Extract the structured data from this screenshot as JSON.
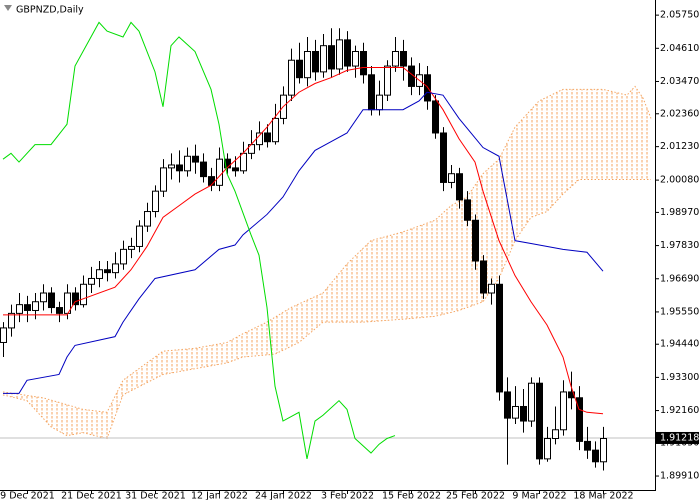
{
  "chart_data": {
    "type": "candlestick",
    "title": "GBPNZD,Daily",
    "categories": [
      null,
      null,
      null,
      "9 Dec 2021",
      null,
      null,
      null,
      null,
      null,
      null,
      null,
      "21 Dec 2021",
      null,
      null,
      null,
      null,
      null,
      null,
      null,
      "31 Dec 2021",
      null,
      null,
      null,
      null,
      null,
      null,
      null,
      "12 Jan 2022",
      null,
      null,
      null,
      null,
      null,
      null,
      null,
      "24 Jan 2022",
      null,
      null,
      null,
      null,
      null,
      null,
      null,
      "3 Feb 2022",
      null,
      null,
      null,
      null,
      null,
      null,
      null,
      "15 Feb 2022",
      null,
      null,
      null,
      null,
      null,
      null,
      null,
      "25 Feb 2022",
      null,
      null,
      null,
      null,
      null,
      null,
      null,
      "9 Mar 2022",
      null,
      null,
      null,
      null,
      null,
      null,
      null,
      "18 Mar 2022"
    ],
    "open": [
      1.945,
      1.95,
      1.955,
      1.958,
      1.956,
      1.959,
      1.962,
      1.957,
      1.955,
      1.962,
      1.958,
      1.965,
      1.967,
      1.97,
      1.969,
      1.972,
      1.977,
      1.978,
      1.985,
      1.99,
      1.997,
      2.005,
      2.006,
      2.004,
      2.009,
      2.007,
      2.002,
      1.999,
      2.008,
      2.005,
      2.004,
      2.01,
      2.013,
      2.017,
      2.014,
      2.022,
      2.03,
      2.042,
      2.036,
      2.045,
      2.038,
      2.047,
      2.039,
      2.049,
      2.04,
      2.045,
      2.037,
      2.025,
      2.03,
      2.04,
      2.045,
      2.04,
      2.033,
      2.037,
      2.028,
      2.017,
      2.0,
      2.003,
      1.994,
      1.987,
      1.973,
      1.962,
      1.965,
      1.928,
      1.919,
      1.923,
      1.918,
      1.931,
      1.905,
      1.912,
      1.915,
      1.928,
      1.926,
      1.911,
      1.908,
      1.904
    ],
    "high": [
      1.952,
      1.958,
      1.962,
      1.961,
      1.962,
      1.965,
      1.964,
      1.959,
      1.965,
      1.964,
      1.968,
      1.971,
      1.973,
      1.973,
      1.976,
      1.98,
      1.981,
      1.987,
      1.993,
      1.999,
      2.008,
      2.01,
      2.011,
      2.012,
      2.013,
      2.01,
      2.005,
      2.012,
      2.01,
      2.009,
      2.014,
      2.018,
      2.021,
      2.02,
      2.027,
      2.033,
      2.046,
      2.048,
      2.05,
      2.049,
      2.051,
      2.053,
      2.053,
      2.052,
      2.047,
      2.048,
      2.04,
      2.035,
      2.042,
      2.05,
      2.049,
      2.043,
      2.041,
      2.04,
      2.03,
      2.019,
      2.006,
      2.005,
      1.997,
      1.989,
      1.975,
      1.967,
      1.968,
      1.933,
      1.93,
      1.929,
      1.933,
      1.933,
      1.916,
      1.923,
      1.932,
      1.935,
      1.93,
      1.916,
      1.911,
      1.916
    ],
    "low": [
      1.94,
      1.947,
      1.952,
      1.952,
      1.953,
      1.956,
      1.955,
      1.952,
      1.953,
      1.956,
      1.957,
      1.962,
      1.964,
      1.966,
      1.967,
      1.97,
      1.974,
      1.976,
      1.983,
      1.988,
      1.995,
      2.001,
      2.0,
      2.002,
      2.003,
      2.0,
      1.997,
      1.997,
      2.003,
      2.002,
      2.003,
      2.008,
      2.011,
      2.012,
      2.013,
      2.02,
      2.028,
      2.034,
      2.033,
      2.035,
      2.036,
      2.036,
      2.037,
      2.038,
      2.036,
      2.034,
      2.023,
      2.023,
      2.028,
      2.038,
      2.035,
      2.03,
      2.03,
      2.025,
      2.015,
      1.997,
      1.998,
      1.991,
      1.985,
      1.97,
      1.96,
      1.958,
      1.925,
      1.903,
      1.917,
      1.914,
      1.916,
      1.903,
      1.904,
      1.91,
      1.913,
      1.922,
      1.908,
      1.905,
      1.902,
      1.901
    ],
    "close": [
      1.95,
      1.955,
      1.958,
      1.956,
      1.959,
      1.962,
      1.957,
      1.955,
      1.962,
      1.958,
      1.965,
      1.967,
      1.97,
      1.969,
      1.972,
      1.977,
      1.978,
      1.985,
      1.99,
      1.997,
      2.005,
      2.006,
      2.004,
      2.009,
      2.007,
      2.002,
      1.999,
      2.008,
      2.005,
      2.004,
      2.01,
      2.013,
      2.017,
      2.014,
      2.022,
      2.03,
      2.042,
      2.036,
      2.045,
      2.038,
      2.047,
      2.039,
      2.049,
      2.04,
      2.045,
      2.037,
      2.025,
      2.03,
      2.04,
      2.045,
      2.04,
      2.033,
      2.037,
      2.028,
      2.017,
      2.0,
      2.003,
      1.994,
      1.987,
      1.973,
      1.962,
      1.965,
      1.928,
      1.919,
      1.923,
      1.918,
      1.931,
      1.905,
      1.912,
      1.915,
      1.928,
      1.926,
      1.911,
      1.908,
      1.904,
      1.912
    ],
    "lines": [
      {
        "color": "#ff0000",
        "x": [
          0,
          8,
          9,
          14,
          16,
          18,
          20,
          22,
          24,
          26,
          28,
          30,
          33,
          35,
          37,
          39,
          41,
          43,
          45,
          50,
          53,
          55,
          57,
          59,
          60,
          62,
          64,
          66,
          68,
          70,
          71,
          72,
          73,
          75
        ],
        "values": [
          1.9545,
          1.9545,
          1.959,
          1.964,
          1.97,
          1.978,
          1.988,
          1.992,
          1.996,
          1.999,
          2.005,
          2.01,
          2.019,
          2.026,
          2.031,
          2.034,
          2.036,
          2.0385,
          2.0395,
          2.0395,
          2.033,
          2.025,
          2.015,
          2.007,
          1.997,
          1.98,
          1.968,
          1.959,
          1.951,
          1.94,
          1.93,
          1.922,
          1.921,
          1.9205
        ]
      },
      {
        "color": "#0000c0",
        "x": [
          0,
          2,
          3,
          7,
          8,
          9,
          14,
          15,
          17,
          19,
          24,
          27,
          29,
          30,
          33,
          35,
          37,
          39,
          41,
          43,
          45,
          50,
          52,
          53,
          55,
          57,
          60,
          62,
          64,
          66,
          70,
          73,
          75
        ],
        "values": [
          1.9275,
          1.9275,
          1.932,
          1.934,
          1.94,
          1.944,
          1.947,
          1.952,
          1.96,
          1.967,
          1.97,
          1.977,
          1.9785,
          1.982,
          1.989,
          1.995,
          2.004,
          2.011,
          2.014,
          2.017,
          2.025,
          2.025,
          2.028,
          2.031,
          2.03,
          2.022,
          2.012,
          2.009,
          1.98,
          1.979,
          1.977,
          1.976,
          1.9695
        ]
      },
      {
        "color": "#00dd00",
        "x": [
          0,
          1,
          2,
          4,
          6,
          8,
          9,
          12,
          13,
          15,
          16,
          17,
          19,
          20,
          21,
          22,
          24,
          26,
          27,
          28,
          29,
          31,
          32,
          33,
          34,
          35,
          37,
          38,
          39,
          40,
          42,
          43,
          44,
          46,
          47,
          48,
          49
        ],
        "values": [
          2.008,
          2.01,
          2.007,
          2.013,
          2.013,
          2.02,
          2.04,
          2.055,
          2.052,
          2.05,
          2.055,
          2.052,
          2.038,
          2.026,
          2.047,
          2.05,
          2.045,
          2.032,
          2.02,
          2.003,
          1.997,
          1.982,
          1.975,
          1.957,
          1.93,
          1.918,
          1.921,
          1.905,
          1.918,
          1.92,
          1.925,
          1.922,
          1.912,
          1.907,
          1.91,
          1.912,
          1.913
        ]
      }
    ],
    "cloud": {
      "color": "#f4a460",
      "span_a": {
        "x": [
          0,
          5,
          10,
          13,
          15,
          18,
          20,
          24,
          28,
          30,
          33,
          36,
          40,
          43,
          46,
          50,
          54,
          56,
          58,
          60,
          62,
          64,
          67,
          70,
          75,
          78,
          79,
          80,
          81
        ],
        "values": [
          1.928,
          1.926,
          1.922,
          1.921,
          1.932,
          1.938,
          1.942,
          1.943,
          1.945,
          1.948,
          1.952,
          1.957,
          1.962,
          1.972,
          1.98,
          1.983,
          1.987,
          1.992,
          1.995,
          2.003,
          2.008,
          2.019,
          2.028,
          2.032,
          2.032,
          2.03,
          2.033,
          2.029,
          2.022
        ]
      },
      "span_b": {
        "x": [
          0,
          3,
          6,
          8,
          10,
          13,
          15,
          20,
          24,
          28,
          30,
          34,
          37,
          40,
          45,
          50,
          54,
          57,
          60,
          62,
          64,
          66,
          68,
          70,
          72,
          75,
          78,
          81
        ],
        "values": [
          1.927,
          1.925,
          1.916,
          1.913,
          1.914,
          1.912,
          1.927,
          1.934,
          1.936,
          1.938,
          1.94,
          1.941,
          1.945,
          1.952,
          1.952,
          1.953,
          1.954,
          1.956,
          1.959,
          1.967,
          1.98,
          1.988,
          1.99,
          1.996,
          2.001,
          2.001,
          2.001,
          2.001
        ]
      }
    },
    "current_price": {
      "value": 1.91218,
      "label": "1.91218"
    },
    "xlim": [
      -0.375,
      81.5
    ],
    "ylim": [
      1.8943,
      2.0627
    ],
    "yticks": [
      {
        "value": 2.0575,
        "label": "2.05750"
      },
      {
        "value": 2.0461,
        "label": "2.04610"
      },
      {
        "value": 2.0347,
        "label": "2.03470"
      },
      {
        "value": 2.0236,
        "label": "2.02360"
      },
      {
        "value": 2.0123,
        "label": "2.01230"
      },
      {
        "value": 2.0008,
        "label": "2.00080"
      },
      {
        "value": 1.9897,
        "label": "1.98970"
      },
      {
        "value": 1.9783,
        "label": "1.97830"
      },
      {
        "value": 1.9669,
        "label": "1.96690"
      },
      {
        "value": 1.9555,
        "label": "1.95550"
      },
      {
        "value": 1.9444,
        "label": "1.94440"
      },
      {
        "value": 1.933,
        "label": "1.93300"
      },
      {
        "value": 1.9216,
        "label": "1.92160"
      },
      {
        "value": 1.9105,
        "label": "1.91050"
      },
      {
        "value": 1.8991,
        "label": "1.89910"
      }
    ]
  }
}
